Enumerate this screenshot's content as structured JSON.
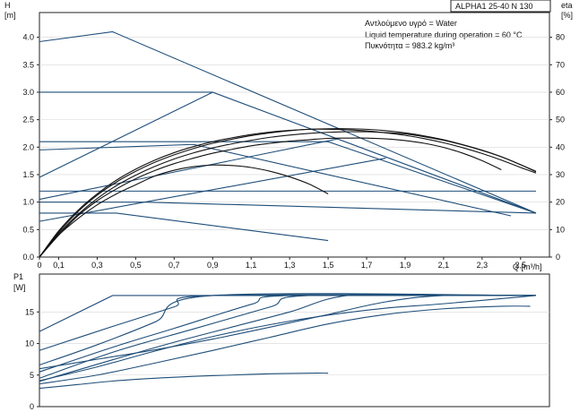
{
  "title_box": "ALPHA1 25-40 N 130",
  "info_lines": [
    "Αντλούμενο υγρό = Water",
    "Liquid temperature during operation = 60 °C",
    "Πυκνότητα = 983.2 kg/m³"
  ],
  "colors": {
    "curve_blue": "#1f4e79",
    "curve_black": "#111111",
    "frame": "#222222"
  },
  "chart_data": [
    {
      "type": "line",
      "name": "head-and-efficiency",
      "xlabel": "Q [m³/h]",
      "ylabel": "H [m]",
      "y2label": "eta [%]",
      "ylabel_symbol": "H",
      "ylabel_unit": "[m]",
      "y2label_symbol": "eta",
      "y2label_unit": "[%]",
      "xlim": [
        0,
        2.65
      ],
      "ylim": [
        0,
        4.45
      ],
      "y2lim": [
        0,
        89
      ],
      "x_ticks": [
        0,
        0.1,
        0.3,
        0.5,
        0.7,
        0.9,
        1.1,
        1.3,
        1.5,
        1.7,
        1.9,
        2.1,
        2.3,
        2.5
      ],
      "x_tick_labels": [
        "0",
        "0,1",
        "0,3",
        "0,5",
        "0,7",
        "0,9",
        "1,1",
        "1,3",
        "1,5",
        "1,7",
        "1,9",
        "2,1",
        "2,3",
        "2,5"
      ],
      "y_ticks": [
        0,
        0.5,
        1.0,
        1.5,
        2.0,
        2.5,
        3.0,
        3.5,
        4.0
      ],
      "y_tick_labels": [
        "0.0",
        "0.5",
        "1.0",
        "1.5",
        "2.0",
        "2.5",
        "3.0",
        "3.5",
        "4.0"
      ],
      "y2_ticks": [
        0,
        10,
        20,
        30,
        40,
        50,
        60,
        70,
        80
      ],
      "y2_tick_labels": [
        "0",
        "10",
        "20",
        "30",
        "40",
        "50",
        "60",
        "70",
        "80"
      ],
      "grid": "horizontal",
      "series": [
        {
          "color": "blue",
          "axis": "y",
          "x": [
            0,
            0.4,
            1.5
          ],
          "y": [
            0.8,
            0.8,
            0.3
          ]
        },
        {
          "color": "blue",
          "axis": "y",
          "x": [
            0,
            0.55,
            2.58
          ],
          "y": [
            1.0,
            1.0,
            0.8
          ]
        },
        {
          "color": "blue",
          "axis": "y",
          "x": [
            0,
            2.58
          ],
          "y": [
            1.2,
            1.2
          ]
        },
        {
          "color": "blue",
          "axis": "y",
          "x": [
            0,
            0.8,
            2.45
          ],
          "y": [
            1.95,
            2.05,
            0.75
          ]
        },
        {
          "color": "blue",
          "axis": "y",
          "x": [
            0,
            1.5,
            2.58
          ],
          "y": [
            2.1,
            2.1,
            0.8
          ]
        },
        {
          "color": "blue",
          "axis": "y",
          "x": [
            0,
            0.9,
            2.58
          ],
          "y": [
            3.0,
            3.0,
            0.8
          ]
        },
        {
          "color": "blue",
          "axis": "y",
          "x": [
            0,
            0.38,
            2.58
          ],
          "y": [
            3.92,
            4.1,
            0.8
          ]
        },
        {
          "color": "blue",
          "axis": "y",
          "x": [
            0,
            0.9
          ],
          "y": [
            1.45,
            3.0
          ]
        },
        {
          "color": "blue",
          "axis": "y",
          "x": [
            0,
            1.55
          ],
          "y": [
            1.05,
            2.15
          ]
        },
        {
          "color": "blue",
          "axis": "y",
          "x": [
            0,
            1.8
          ],
          "y": [
            0.65,
            1.8
          ]
        },
        {
          "color": "black",
          "axis": "y2",
          "x": [
            0,
            0.1,
            0.2,
            0.3,
            0.4,
            0.5,
            0.6,
            0.7,
            0.8,
            0.9,
            1.0,
            1.1,
            1.2,
            1.3,
            1.4,
            1.5
          ],
          "y": [
            0,
            8,
            14,
            19,
            23,
            26.3,
            29.5,
            31.6,
            32.9,
            33.5,
            33.3,
            32.6,
            31.2,
            29.2,
            26.6,
            23
          ]
        },
        {
          "color": "black",
          "axis": "y2",
          "x": [
            0,
            0.1,
            0.2,
            0.3,
            0.4,
            0.5,
            0.6,
            0.7,
            0.8,
            0.9,
            1.0,
            1.1,
            1.2,
            1.3,
            1.4,
            1.5,
            1.6,
            1.7,
            1.8,
            1.9,
            2.0,
            2.1,
            2.2,
            2.3,
            2.4
          ],
          "y": [
            0,
            8,
            15,
            20.5,
            24.8,
            28.5,
            31.5,
            34,
            36,
            37.8,
            39.2,
            40.5,
            41.4,
            42.2,
            42.7,
            43.2,
            43.3,
            43.3,
            43,
            42.4,
            41.4,
            39.9,
            37.8,
            35.1,
            31.8
          ]
        },
        {
          "color": "black",
          "axis": "y2",
          "x": [
            0,
            0.1,
            0.2,
            0.3,
            0.4,
            0.5,
            0.6,
            0.7,
            0.8,
            0.9,
            1.0,
            1.1,
            1.2,
            1.3,
            1.4,
            1.5,
            1.6,
            1.7,
            1.8,
            1.9,
            2.0,
            2.1,
            2.2,
            2.3,
            2.4,
            2.5,
            2.58
          ],
          "y": [
            0,
            8.5,
            15.5,
            21.3,
            26,
            29.8,
            33,
            35.7,
            37.9,
            39.7,
            41.2,
            42.5,
            43.6,
            44.4,
            45,
            45.4,
            45.6,
            45.6,
            45.3,
            44.8,
            43.8,
            42.5,
            40.8,
            38.8,
            36.5,
            33.6,
            31
          ]
        },
        {
          "color": "black",
          "axis": "y2",
          "x": [
            0,
            0.1,
            0.2,
            0.3,
            0.4,
            0.5,
            0.6,
            0.7,
            0.8,
            0.9,
            1.0,
            1.1,
            1.2,
            1.3,
            1.4,
            1.5,
            1.6,
            1.7,
            1.8,
            1.9,
            2.0,
            2.1,
            2.2,
            2.3,
            2.4,
            2.5,
            2.58
          ],
          "y": [
            0,
            9,
            16.5,
            22.5,
            27.3,
            31.2,
            34.5,
            37.2,
            39.5,
            41.4,
            42.9,
            44.2,
            45.2,
            46,
            46.5,
            46.7,
            46.7,
            46.5,
            46,
            45.2,
            44.1,
            42.7,
            40.9,
            38.9,
            36.5,
            33.6,
            31.2
          ]
        },
        {
          "color": "black",
          "axis": "y2",
          "x": [
            0,
            0.1,
            0.2,
            0.3,
            0.4,
            0.5,
            0.6,
            0.7,
            0.8,
            0.9,
            1.0,
            1.1,
            1.2,
            1.3,
            1.4,
            1.5,
            1.6,
            1.7,
            1.8,
            1.9,
            2.0,
            2.1,
            2.2,
            2.3,
            2.4,
            2.5,
            2.58
          ],
          "y": [
            0,
            9.5,
            17,
            23,
            28,
            32,
            35.3,
            38,
            40.2,
            42,
            43.4,
            44.6,
            45.5,
            46.1,
            46.5,
            46.5,
            46.3,
            45.9,
            45.2,
            44.3,
            43.1,
            41.6,
            39.8,
            37.7,
            35.3,
            32.6,
            30.6
          ]
        }
      ]
    },
    {
      "type": "line",
      "name": "power",
      "ylabel": "P1 [W]",
      "ylabel_symbol": "P1",
      "ylabel_unit": "[W]",
      "xlim": [
        0,
        2.65
      ],
      "ylim": [
        0,
        21
      ],
      "y_ticks": [
        0,
        5,
        10,
        15
      ],
      "y_tick_labels": [
        "0",
        "5",
        "10",
        "15"
      ],
      "grid": "horizontal",
      "series": [
        {
          "color": "blue",
          "x": [
            0,
            0.2,
            0.4,
            0.6,
            0.8,
            1.0,
            1.2,
            1.4,
            1.5
          ],
          "y": [
            2.9,
            3.5,
            4.1,
            4.5,
            4.8,
            5.0,
            5.2,
            5.3,
            5.3
          ]
        },
        {
          "color": "blue",
          "x": [
            0,
            0.3,
            0.6,
            0.9,
            1.2,
            1.5,
            1.8,
            2.1,
            2.4,
            2.55
          ],
          "y": [
            3.6,
            5.0,
            6.9,
            8.9,
            11.0,
            13.1,
            14.6,
            15.5,
            15.9,
            15.9
          ]
        },
        {
          "color": "blue",
          "x": [
            0,
            0.3,
            0.6,
            0.9,
            1.2,
            1.5,
            1.8,
            2.1,
            2.58
          ],
          "y": [
            4.1,
            6.3,
            8.8,
            11.1,
            13.0,
            14.5,
            15.6,
            16.3,
            17.6
          ]
        },
        {
          "color": "blue",
          "x": [
            0,
            0.3,
            0.6,
            0.9,
            1.2,
            1.5,
            1.8,
            2.1,
            2.58
          ],
          "y": [
            6.0,
            7.5,
            9.0,
            10.7,
            12.6,
            14.6,
            16.6,
            17.6,
            17.6
          ]
        },
        {
          "color": "blue",
          "x": [
            0,
            0.4,
            0.7,
            1.0,
            1.3,
            1.6,
            2.1,
            2.58
          ],
          "y": [
            4.0,
            7.6,
            10.2,
            12.6,
            15.0,
            17.6,
            17.6,
            17.6
          ]
        },
        {
          "color": "blue",
          "x": [
            0,
            0.4,
            0.8,
            1.2,
            1.4,
            2.58
          ],
          "y": [
            4.5,
            8.8,
            12.3,
            15.8,
            17.6,
            17.6
          ]
        },
        {
          "color": "blue",
          "x": [
            0,
            0.4,
            0.7,
            1.1,
            1.3,
            2.58
          ],
          "y": [
            5.5,
            9.6,
            12.4,
            16.2,
            17.6,
            17.6
          ]
        },
        {
          "color": "blue",
          "x": [
            0,
            0.3,
            0.6,
            0.9,
            2.58
          ],
          "y": [
            6.6,
            9.8,
            13.4,
            17.6,
            17.6
          ]
        },
        {
          "color": "blue",
          "x": [
            0,
            0.4,
            0.7,
            0.9,
            2.58
          ],
          "y": [
            8.9,
            12.9,
            15.8,
            17.6,
            17.6
          ]
        },
        {
          "color": "blue",
          "x": [
            0,
            0.38,
            2.58
          ],
          "y": [
            11.9,
            17.6,
            17.6
          ]
        }
      ]
    }
  ]
}
